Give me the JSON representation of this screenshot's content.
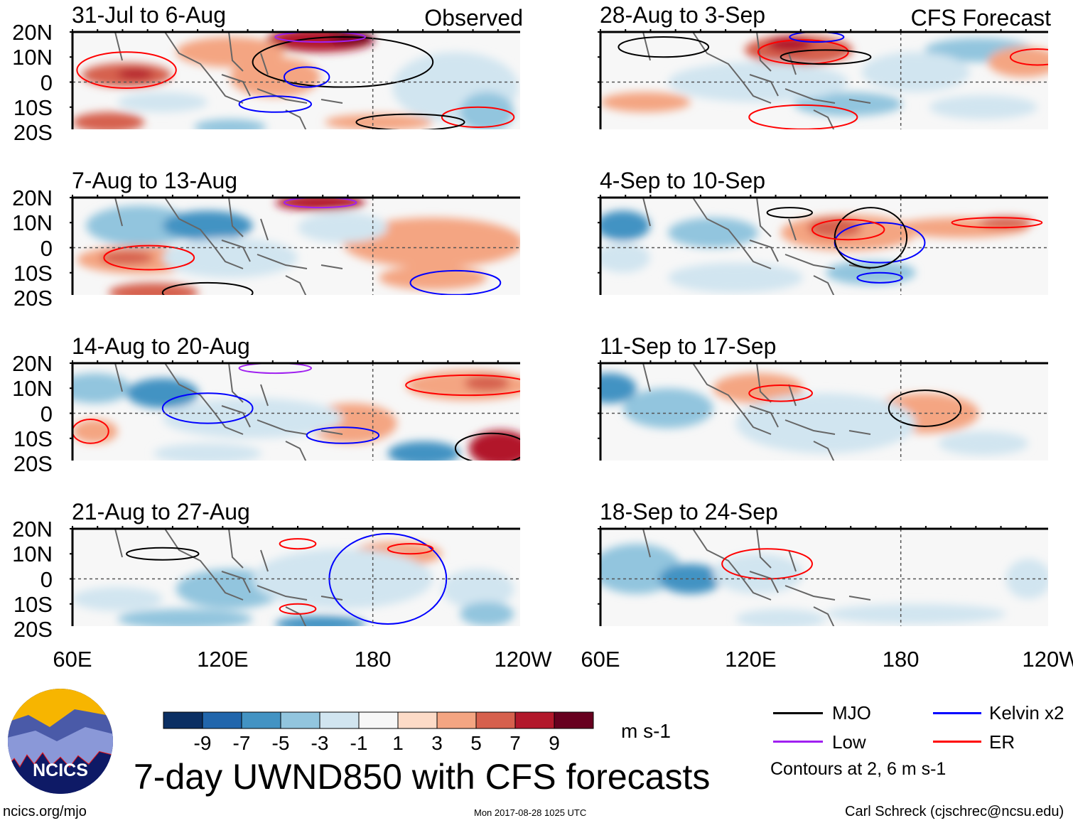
{
  "chart_data": {
    "type": "heatmap",
    "title": "7-day UWND850 with CFS forecasts",
    "variable": "850 hPa zonal wind anomaly",
    "units": "m s-1",
    "columns": [
      "Observed",
      "CFS Forecast"
    ],
    "panels": [
      {
        "title": "31-Jul to 6-Aug",
        "column": "Observed"
      },
      {
        "title": "7-Aug to 13-Aug",
        "column": "Observed"
      },
      {
        "title": "14-Aug to 20-Aug",
        "column": "Observed"
      },
      {
        "title": "21-Aug to 27-Aug",
        "column": "Observed"
      },
      {
        "title": "28-Aug to 3-Sep",
        "column": "CFS Forecast"
      },
      {
        "title": "4-Sep to 10-Sep",
        "column": "CFS Forecast"
      },
      {
        "title": "11-Sep to 17-Sep",
        "column": "CFS Forecast"
      },
      {
        "title": "18-Sep to 24-Sep",
        "column": "CFS Forecast"
      }
    ],
    "y_ticks": [
      "20N",
      "10N",
      "0",
      "10S",
      "20S"
    ],
    "x_ticks": [
      "60E",
      "120E",
      "180",
      "120W"
    ],
    "xlim": [
      "60E",
      "120W"
    ],
    "ylim": [
      "20S",
      "20N"
    ],
    "colorbar": {
      "ticks": [
        "-9",
        "-7",
        "-5",
        "-3",
        "-1",
        "1",
        "3",
        "5",
        "7",
        "9"
      ],
      "colors": [
        "#0b2f63",
        "#2166ac",
        "#4393c3",
        "#92c5de",
        "#d1e5f0",
        "#f7f7f7",
        "#fddbc7",
        "#f4a582",
        "#d6604d",
        "#b2182b",
        "#67001f"
      ],
      "units": "m s-1"
    },
    "legend": [
      {
        "label": "MJO",
        "color": "#000000"
      },
      {
        "label": "Kelvin x2",
        "color": "#0000ff"
      },
      {
        "label": "Low",
        "color": "#a020f0"
      },
      {
        "label": "ER",
        "color": "#ff0000"
      }
    ],
    "contour_note": "Contours at 2, 6 m s-1"
  },
  "footer": {
    "logo_text": "NCICS",
    "url": "ncics.org/mjo",
    "timestamp": "Mon 2017-08-28 1025 UTC",
    "author": "Carl Schreck (cjschrec@ncsu.edu)"
  }
}
